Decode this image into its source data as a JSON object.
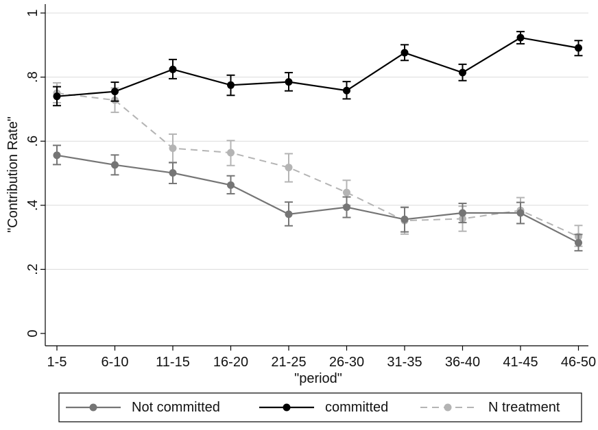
{
  "chart_data": {
    "type": "line",
    "xlabel": "\"period\"",
    "ylabel": "\"Contribution Rate\"",
    "ylim": [
      0,
      1
    ],
    "y_ticks": [
      0,
      0.2,
      0.4,
      0.6,
      0.8,
      1
    ],
    "y_tick_labels": [
      "0",
      ".2",
      ".4",
      ".6",
      ".8",
      "1"
    ],
    "categories": [
      "1-5",
      "6-10",
      "11-15",
      "16-20",
      "21-25",
      "26-30",
      "31-35",
      "36-40",
      "41-45",
      "46-50"
    ],
    "grid": true,
    "legend_position": "bottom",
    "series": [
      {
        "name": "Not committed",
        "color": "#757575",
        "dash": "solid",
        "values": [
          0.556,
          0.526,
          0.501,
          0.463,
          0.372,
          0.394,
          0.356,
          0.376,
          0.376,
          0.283
        ],
        "lower": [
          0.527,
          0.495,
          0.468,
          0.436,
          0.336,
          0.362,
          0.317,
          0.346,
          0.343,
          0.258
        ],
        "upper": [
          0.587,
          0.557,
          0.533,
          0.492,
          0.41,
          0.426,
          0.394,
          0.406,
          0.409,
          0.309
        ]
      },
      {
        "name": "committed",
        "color": "#000000",
        "dash": "solid",
        "values": [
          0.74,
          0.755,
          0.824,
          0.775,
          0.785,
          0.758,
          0.876,
          0.814,
          0.923,
          0.891
        ],
        "lower": [
          0.711,
          0.725,
          0.795,
          0.743,
          0.757,
          0.732,
          0.852,
          0.789,
          0.904,
          0.867
        ],
        "upper": [
          0.77,
          0.784,
          0.855,
          0.806,
          0.814,
          0.786,
          0.901,
          0.84,
          0.942,
          0.914
        ]
      },
      {
        "name": "N treatment",
        "color": "#b4b4b4",
        "dash": "dashed",
        "values": [
          0.75,
          0.728,
          0.578,
          0.564,
          0.518,
          0.44,
          0.352,
          0.358,
          0.384,
          0.302
        ],
        "lower": [
          0.72,
          0.69,
          0.534,
          0.524,
          0.473,
          0.4,
          0.31,
          0.319,
          0.343,
          0.272
        ],
        "upper": [
          0.782,
          0.766,
          0.622,
          0.602,
          0.561,
          0.478,
          0.393,
          0.397,
          0.424,
          0.337
        ]
      }
    ]
  }
}
